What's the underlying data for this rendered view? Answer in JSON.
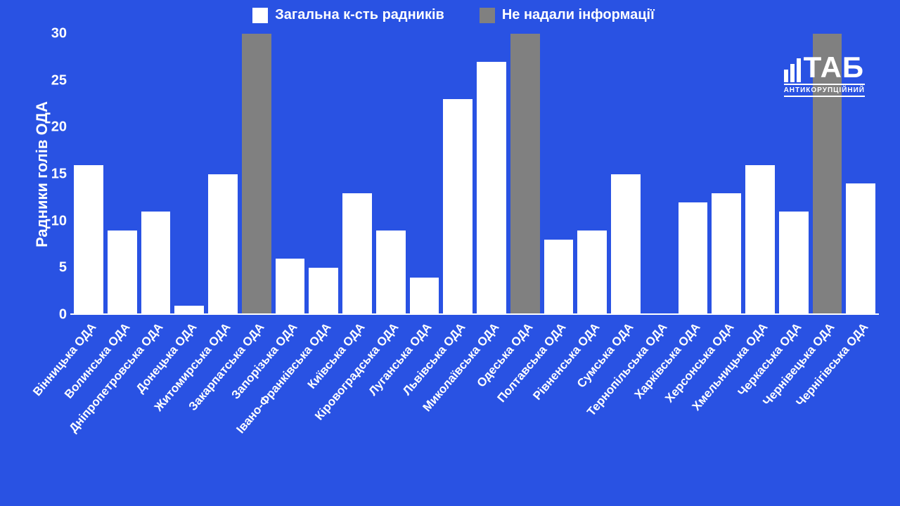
{
  "chart": {
    "type": "bar",
    "background_color": "#2952e3",
    "text_color": "#ffffff",
    "series1_color": "#ffffff",
    "series2_color": "#808080",
    "ylabel": "Радники голів ОДА",
    "ylim": [
      0,
      30
    ],
    "ytick_step": 5,
    "yticks": [
      0,
      5,
      10,
      15,
      20,
      25,
      30
    ],
    "legend": {
      "series1": "Загальна к-сть радників",
      "series2": "Не надали інформації"
    },
    "categories": [
      "Вінницька ОДА",
      "Волинська ОДА",
      "Дніпропетровська ОДА",
      "Донецька ОДА",
      "Житомирська ОДА",
      "Закарпатська ОДА",
      "Запорізька ОДА",
      "Івано-Франківська ОДА",
      "Київська ОДА",
      "Кіровоградська ОДА",
      "Луганська ОДА",
      "Львівська ОДА",
      "Миколаївська ОДА",
      "Одеська ОДА",
      "Полтавська ОДА",
      "Рівненська ОДА",
      "Сумська ОДА",
      "Тернопільська ОДА",
      "Харківська ОДА",
      "Херсонська ОДА",
      "Хмельницька ОДА",
      "Черкаська ОДА",
      "Чернівецька ОДА",
      "Чернігівська ОДА"
    ],
    "values": [
      16,
      9,
      11,
      1,
      15,
      30,
      6,
      5,
      13,
      9,
      4,
      23,
      27,
      30,
      8,
      9,
      15,
      0,
      12,
      13,
      16,
      11,
      30,
      14
    ],
    "no_info_flags": [
      false,
      false,
      false,
      false,
      false,
      true,
      false,
      false,
      false,
      false,
      false,
      false,
      false,
      true,
      false,
      false,
      false,
      false,
      false,
      false,
      false,
      false,
      true,
      false
    ]
  },
  "logo": {
    "main": "ТАБ",
    "sub": "АНТИКОРУПЦІЙНИЙ"
  }
}
